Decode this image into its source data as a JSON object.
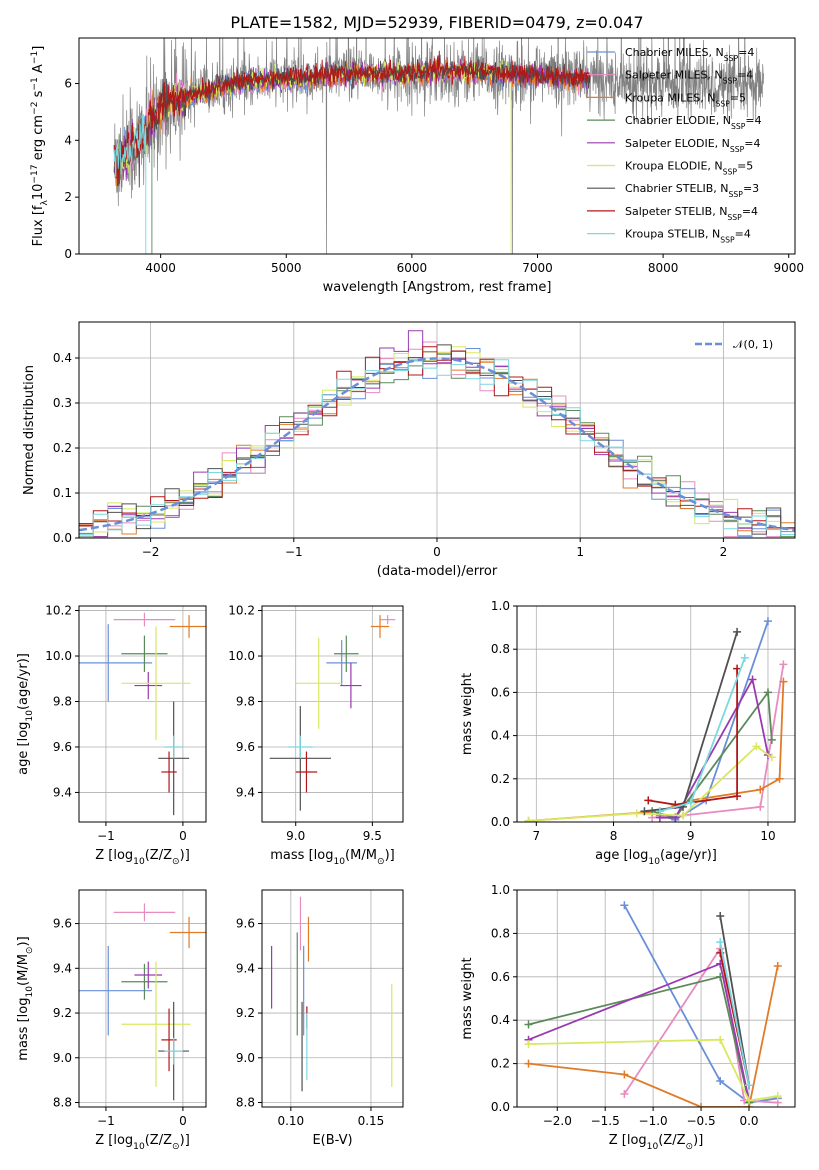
{
  "figure_title": "PLATE=1582, MJD=52939, FIBERID=0479, z=0.047",
  "colors": {
    "Chabrier MILES": "#6a8fd8",
    "Salpeter MILES": "#e88cc0",
    "Kroupa MILES": "#e07b28",
    "Chabrier ELODIE": "#5a8a5a",
    "Salpeter ELODIE": "#9a3ab0",
    "Kroupa ELODIE": "#d8e860",
    "Chabrier STELIB": "#505050",
    "Salpeter STELIB": "#b01818",
    "Kroupa STELIB": "#7ad8e0",
    "observed": "#808080"
  },
  "chart_data": [
    {
      "id": "spectrum",
      "type": "line",
      "xlabel": "wavelength [Angstrom, rest frame]",
      "ylabel_parts": [
        "Flux [f",
        "λ",
        "10",
        "−17",
        " erg cm",
        "−2",
        " s",
        "−1",
        " A",
        "−1",
        "]"
      ],
      "xlim": [
        3350,
        9050
      ],
      "ylim": [
        0,
        7.6
      ],
      "xticks": [
        4000,
        5000,
        6000,
        7000,
        8000,
        9000
      ],
      "yticks": [
        0,
        2,
        4,
        6
      ],
      "legend_position": "right",
      "legend": [
        {
          "name": "Chabrier MILES",
          "label": "Chabrier MILES, N",
          "sub": "SSP",
          "suffix": "=4"
        },
        {
          "name": "Salpeter MILES",
          "label": "Salpeter MILES, N",
          "sub": "SSP",
          "suffix": "=4"
        },
        {
          "name": "Kroupa MILES",
          "label": "Kroupa MILES, N",
          "sub": "SSP",
          "suffix": "=5"
        },
        {
          "name": "Chabrier ELODIE",
          "label": "Chabrier ELODIE, N",
          "sub": "SSP",
          "suffix": "=4"
        },
        {
          "name": "Salpeter ELODIE",
          "label": "Salpeter ELODIE, N",
          "sub": "SSP",
          "suffix": "=4"
        },
        {
          "name": "Kroupa ELODIE",
          "label": "Kroupa ELODIE, N",
          "sub": "SSP",
          "suffix": "=5"
        },
        {
          "name": "Chabrier STELIB",
          "label": "Chabrier STELIB, N",
          "sub": "SSP",
          "suffix": "=3"
        },
        {
          "name": "Salpeter STELIB",
          "label": "Salpeter STELIB, N",
          "sub": "SSP",
          "suffix": "=4"
        },
        {
          "name": "Kroupa STELIB",
          "label": "Kroupa STELIB, N",
          "sub": "SSP",
          "suffix": "=4"
        }
      ],
      "continuum": {
        "x": [
          3640,
          3700,
          3800,
          3900,
          4000,
          4100,
          4200,
          4400,
          4600,
          4800,
          5000,
          5200,
          5400,
          5600,
          5800,
          6000,
          6200,
          6400,
          6600,
          6800,
          7000,
          7200,
          7400,
          7600,
          7800,
          8000,
          8200,
          8400,
          8600,
          8800
        ],
        "y": [
          3.2,
          3.4,
          3.8,
          4.4,
          5.2,
          5.4,
          5.5,
          5.8,
          6.0,
          6.1,
          6.2,
          6.2,
          6.3,
          6.3,
          6.35,
          6.3,
          6.4,
          6.4,
          6.35,
          6.3,
          6.3,
          6.2,
          6.2,
          6.1,
          6.05,
          6.0,
          5.95,
          5.9,
          5.85,
          5.8
        ]
      },
      "observed_range": [
        3630,
        8800
      ],
      "model_range": [
        3630,
        7420
      ],
      "model_drops": [
        {
          "series": "Kroupa STELIB",
          "x": 3880
        },
        {
          "series": "Chabrier ELODIE",
          "x": 3930
        },
        {
          "series": "Kroupa ELODIE",
          "x": 6790
        },
        {
          "series": "Salpeter STELIB",
          "x": 7420
        },
        {
          "series": "Kroupa MILES",
          "x": 7420
        }
      ],
      "observed_drops": [
        5320,
        6800
      ]
    },
    {
      "id": "residuals",
      "type": "step",
      "xlabel": "(data-model)/error",
      "ylabel": "Normed distribution",
      "xlim": [
        -2.5,
        2.5
      ],
      "ylim": [
        0,
        0.48
      ],
      "xticks": [
        -2,
        -1,
        0,
        1,
        2
      ],
      "yticks": [
        0.0,
        0.1,
        0.2,
        0.3,
        0.4
      ],
      "legend_position": "top-right",
      "legend_label": "𝒩(0, 1)",
      "bin_width": 0.1,
      "bin_start": -2.5,
      "gaussian": {
        "mean": 0,
        "sigma": 1,
        "color": "#6a8fd8"
      },
      "grid": true
    },
    {
      "id": "age-vs-Z",
      "type": "errorbar",
      "xlabel_parts": [
        "Z [log",
        "10",
        "(Z/Z",
        "⊙",
        ")]"
      ],
      "ylabel_parts": [
        "age  [log",
        "10",
        "(age/yr)]"
      ],
      "xlim": [
        -1.35,
        0.3
      ],
      "ylim": [
        9.27,
        10.22
      ],
      "xticks": [
        -1,
        0
      ],
      "yticks": [
        9.4,
        9.6,
        9.8,
        10.0,
        10.2
      ],
      "grid": true,
      "points": [
        {
          "series": "Chabrier MILES",
          "x": -0.97,
          "y": 9.97,
          "xerr": 0.57,
          "yerr": 0.17
        },
        {
          "series": "Salpeter MILES",
          "x": -0.5,
          "y": 10.16,
          "xerr": 0.4,
          "yerr": 0.03
        },
        {
          "series": "Kroupa MILES",
          "x": 0.08,
          "y": 10.13,
          "xerr": 0.25,
          "yerr": 0.05
        },
        {
          "series": "Chabrier ELODIE",
          "x": -0.5,
          "y": 10.01,
          "xerr": 0.3,
          "yerr": 0.08
        },
        {
          "series": "Salpeter ELODIE",
          "x": -0.45,
          "y": 9.87,
          "xerr": 0.18,
          "yerr": 0.06
        },
        {
          "series": "Kroupa ELODIE",
          "x": -0.35,
          "y": 9.88,
          "xerr": 0.45,
          "yerr": 0.25
        },
        {
          "series": "Chabrier STELIB",
          "x": -0.12,
          "y": 9.55,
          "xerr": 0.2,
          "yerr": 0.25
        },
        {
          "series": "Salpeter STELIB",
          "x": -0.18,
          "y": 9.49,
          "xerr": 0.1,
          "yerr": 0.09
        },
        {
          "series": "Kroupa STELIB",
          "x": -0.12,
          "y": 9.6,
          "xerr": 0.12,
          "yerr": 0.05
        }
      ]
    },
    {
      "id": "age-vs-mass",
      "type": "errorbar",
      "xlabel_parts": [
        "mass [log",
        "10",
        "(M/M",
        "⊙",
        ")]"
      ],
      "ylabel": "",
      "xlim": [
        8.78,
        9.7
      ],
      "ylim": [
        9.27,
        10.22
      ],
      "xticks": [
        9.0,
        9.5
      ],
      "yticks": [
        9.4,
        9.6,
        9.8,
        10.0,
        10.2
      ],
      "grid": true,
      "points": [
        {
          "series": "Chabrier MILES",
          "x": 9.3,
          "y": 9.97,
          "xerr": 0.1,
          "yerr": 0.1
        },
        {
          "series": "Salpeter MILES",
          "x": 9.6,
          "y": 10.16,
          "xerr": 0.05,
          "yerr": 0.02
        },
        {
          "series": "Kroupa MILES",
          "x": 9.55,
          "y": 10.13,
          "xerr": 0.06,
          "yerr": 0.05
        },
        {
          "series": "Chabrier ELODIE",
          "x": 9.33,
          "y": 10.01,
          "xerr": 0.08,
          "yerr": 0.08
        },
        {
          "series": "Salpeter ELODIE",
          "x": 9.36,
          "y": 9.87,
          "xerr": 0.07,
          "yerr": 0.1
        },
        {
          "series": "Kroupa ELODIE",
          "x": 9.15,
          "y": 9.88,
          "xerr": 0.15,
          "yerr": 0.2
        },
        {
          "series": "Chabrier STELIB",
          "x": 9.03,
          "y": 9.55,
          "xerr": 0.2,
          "yerr": 0.23
        },
        {
          "series": "Salpeter STELIB",
          "x": 9.07,
          "y": 9.49,
          "xerr": 0.07,
          "yerr": 0.09
        },
        {
          "series": "Kroupa STELIB",
          "x": 9.03,
          "y": 9.6,
          "xerr": 0.08,
          "yerr": 0.05
        }
      ]
    },
    {
      "id": "weight-vs-age",
      "type": "line",
      "xlabel_parts": [
        "age  [log",
        "10",
        "(age/yr)]"
      ],
      "ylabel": "mass weight",
      "xlim": [
        6.75,
        10.35
      ],
      "ylim": [
        0,
        1.0
      ],
      "xticks": [
        7,
        8,
        9,
        10
      ],
      "yticks": [
        0.0,
        0.2,
        0.4,
        0.6,
        0.8,
        1.0
      ],
      "grid": true,
      "series": [
        {
          "name": "Chabrier MILES",
          "x": [
            8.6,
            8.8,
            9.2,
            10.0
          ],
          "y": [
            0.03,
            0.01,
            0.1,
            0.93
          ]
        },
        {
          "name": "Salpeter MILES",
          "x": [
            8.5,
            8.9,
            9.9,
            10.2
          ],
          "y": [
            0.02,
            0.03,
            0.07,
            0.73
          ]
        },
        {
          "name": "Kroupa MILES",
          "x": [
            6.9,
            8.6,
            9.0,
            9.9,
            10.15,
            10.2
          ],
          "y": [
            0.005,
            0.05,
            0.1,
            0.15,
            0.2,
            0.65
          ]
        },
        {
          "name": "Chabrier ELODIE",
          "x": [
            8.5,
            8.8,
            10.0,
            10.05
          ],
          "y": [
            0.05,
            0.02,
            0.6,
            0.38
          ]
        },
        {
          "name": "Salpeter ELODIE",
          "x": [
            8.6,
            8.8,
            9.8,
            10.0
          ],
          "y": [
            0.02,
            0.02,
            0.66,
            0.31
          ]
        },
        {
          "name": "Kroupa ELODIE",
          "x": [
            6.9,
            8.3,
            8.9,
            9.85,
            10.05
          ],
          "y": [
            0.005,
            0.04,
            0.03,
            0.35,
            0.3
          ]
        },
        {
          "name": "Chabrier STELIB",
          "x": [
            8.4,
            8.9,
            9.6
          ],
          "y": [
            0.05,
            0.07,
            0.88
          ]
        },
        {
          "name": "Salpeter STELIB",
          "x": [
            8.45,
            8.8,
            9.6,
            9.6
          ],
          "y": [
            0.1,
            0.08,
            0.12,
            0.71
          ]
        },
        {
          "name": "Kroupa STELIB",
          "x": [
            8.6,
            9.0,
            9.7
          ],
          "y": [
            0.05,
            0.09,
            0.76
          ]
        }
      ]
    },
    {
      "id": "mass-vs-Z",
      "type": "errorbar",
      "xlabel_parts": [
        "Z [log",
        "10",
        "(Z/Z",
        "⊙",
        ")]"
      ],
      "ylabel_parts": [
        "mass [log",
        "10",
        "(M/M",
        "⊙",
        ")]"
      ],
      "xlim": [
        -1.35,
        0.3
      ],
      "ylim": [
        8.78,
        9.75
      ],
      "xticks": [
        -1,
        0
      ],
      "yticks": [
        8.8,
        9.0,
        9.2,
        9.4,
        9.6
      ],
      "grid": true,
      "points": [
        {
          "series": "Chabrier MILES",
          "x": -0.97,
          "y": 9.3,
          "xerr": 0.57,
          "yerr": 0.2
        },
        {
          "series": "Salpeter MILES",
          "x": -0.5,
          "y": 9.65,
          "xerr": 0.4,
          "yerr": 0.04
        },
        {
          "series": "Kroupa MILES",
          "x": 0.08,
          "y": 9.56,
          "xerr": 0.25,
          "yerr": 0.07
        },
        {
          "series": "Chabrier ELODIE",
          "x": -0.5,
          "y": 9.34,
          "xerr": 0.3,
          "yerr": 0.08
        },
        {
          "series": "Salpeter ELODIE",
          "x": -0.45,
          "y": 9.37,
          "xerr": 0.18,
          "yerr": 0.06
        },
        {
          "series": "Kroupa ELODIE",
          "x": -0.35,
          "y": 9.15,
          "xerr": 0.45,
          "yerr": 0.28
        },
        {
          "series": "Chabrier STELIB",
          "x": -0.12,
          "y": 9.03,
          "xerr": 0.2,
          "yerr": 0.22
        },
        {
          "series": "Salpeter STELIB",
          "x": -0.18,
          "y": 9.08,
          "xerr": 0.1,
          "yerr": 0.14
        },
        {
          "series": "Kroupa STELIB",
          "x": -0.12,
          "y": 9.03,
          "xerr": 0.12,
          "yerr": 0.06
        }
      ]
    },
    {
      "id": "mass-vs-ebv",
      "type": "errorbar",
      "xlabel": "E(B-V)",
      "ylabel": "",
      "xlim": [
        0.082,
        0.17
      ],
      "ylim": [
        8.78,
        9.75
      ],
      "xticks": [
        0.1,
        0.15
      ],
      "yticks": [
        8.8,
        9.0,
        9.2,
        9.4,
        9.6
      ],
      "grid": true,
      "points": [
        {
          "series": "Chabrier MILES",
          "x": 0.108,
          "y": 9.3,
          "xerr": 0,
          "yerr": 0.2
        },
        {
          "series": "Salpeter MILES",
          "x": 0.106,
          "y": 9.6,
          "xerr": 0,
          "yerr": 0.12
        },
        {
          "series": "Kroupa MILES",
          "x": 0.111,
          "y": 9.53,
          "xerr": 0,
          "yerr": 0.1
        },
        {
          "series": "Chabrier ELODIE",
          "x": 0.104,
          "y": 9.33,
          "xerr": 0,
          "yerr": 0.23
        },
        {
          "series": "Salpeter ELODIE",
          "x": 0.088,
          "y": 9.36,
          "xerr": 0,
          "yerr": 0.14
        },
        {
          "series": "Kroupa ELODIE",
          "x": 0.163,
          "y": 9.1,
          "xerr": 0,
          "yerr": 0.23
        },
        {
          "series": "Chabrier STELIB",
          "x": 0.107,
          "y": 9.05,
          "xerr": 0,
          "yerr": 0.2
        },
        {
          "series": "Salpeter STELIB",
          "x": 0.11,
          "y": 9.18,
          "xerr": 0,
          "yerr": 0.05
        },
        {
          "series": "Kroupa STELIB",
          "x": 0.11,
          "y": 9.05,
          "xerr": 0,
          "yerr": 0.15
        }
      ]
    },
    {
      "id": "weight-vs-Z",
      "type": "line",
      "xlabel_parts": [
        "Z [log",
        "10",
        "(Z/Z",
        "⊙",
        ")]"
      ],
      "ylabel": "mass weight",
      "xlim": [
        -2.42,
        0.48
      ],
      "ylim": [
        0,
        1.0
      ],
      "xticks": [
        -2.0,
        -1.5,
        -1.0,
        -0.5,
        0.0
      ],
      "yticks": [
        0.0,
        0.2,
        0.4,
        0.6,
        0.8,
        1.0
      ],
      "grid": true,
      "series": [
        {
          "name": "Chabrier MILES",
          "x": [
            -1.3,
            -0.3,
            0.0,
            0.3
          ],
          "y": [
            0.93,
            0.12,
            0.02,
            0.04
          ]
        },
        {
          "name": "Salpeter MILES",
          "x": [
            -1.3,
            -0.3,
            -0.05,
            0.3
          ],
          "y": [
            0.06,
            0.73,
            0.03,
            0.02
          ]
        },
        {
          "name": "Kroupa MILES",
          "x": [
            -2.3,
            -1.3,
            -0.5,
            0.0,
            0.3
          ],
          "y": [
            0.2,
            0.15,
            0.0,
            0.0,
            0.65
          ]
        },
        {
          "name": "Chabrier ELODIE",
          "x": [
            -2.3,
            -0.3,
            0.0
          ],
          "y": [
            0.38,
            0.6,
            0.02
          ]
        },
        {
          "name": "Salpeter ELODIE",
          "x": [
            -2.3,
            -0.3,
            0.0
          ],
          "y": [
            0.31,
            0.66,
            0.03
          ]
        },
        {
          "name": "Kroupa ELODIE",
          "x": [
            -2.3,
            -0.3,
            0.0,
            0.3
          ],
          "y": [
            0.29,
            0.31,
            0.03,
            0.05
          ]
        },
        {
          "name": "Chabrier STELIB",
          "x": [
            -0.3,
            0.0
          ],
          "y": [
            0.88,
            0.1
          ]
        },
        {
          "name": "Salpeter STELIB",
          "x": [
            -0.3,
            0.0
          ],
          "y": [
            0.71,
            0.1
          ]
        },
        {
          "name": "Kroupa STELIB",
          "x": [
            -0.3,
            0.0
          ],
          "y": [
            0.76,
            0.1
          ]
        }
      ]
    }
  ]
}
